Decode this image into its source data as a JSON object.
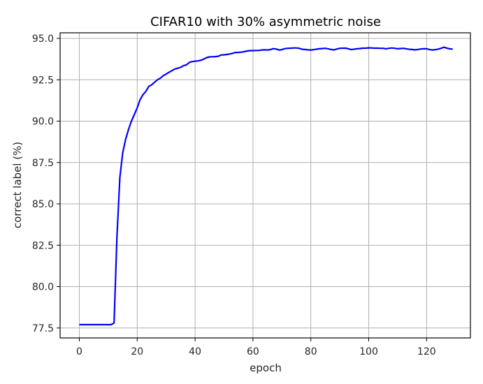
{
  "chart_data": {
    "type": "line",
    "title": "CIFAR10 with 30% asymmetric noise",
    "xlabel": "epoch",
    "ylabel": "correct label (%)",
    "xlim": [
      -6.5,
      135
    ],
    "ylim": [
      76.8,
      95.35
    ],
    "xticks": [
      0,
      20,
      40,
      60,
      80,
      100,
      120
    ],
    "yticks": [
      77.5,
      80.0,
      82.5,
      85.0,
      87.5,
      90.0,
      92.5,
      95.0
    ],
    "ytick_labels": [
      "77.5",
      "80.0",
      "82.5",
      "85.0",
      "87.5",
      "90.0",
      "92.5",
      "95.0"
    ],
    "xtick_labels": [
      "0",
      "20",
      "40",
      "60",
      "80",
      "100",
      "120"
    ],
    "grid": true,
    "legend": null,
    "series": [
      {
        "name": "correct label",
        "color": "#0000ff",
        "x": [
          0,
          1,
          2,
          3,
          4,
          5,
          6,
          7,
          8,
          9,
          10,
          11,
          12,
          13,
          14,
          15,
          16,
          17,
          18,
          19,
          20,
          21,
          22,
          23,
          24,
          25,
          26,
          27,
          28,
          29,
          30,
          31,
          32,
          33,
          34,
          35,
          36,
          37,
          38,
          39,
          40,
          41,
          42,
          43,
          44,
          45,
          46,
          47,
          48,
          49,
          50,
          51,
          52,
          53,
          54,
          55,
          56,
          57,
          58,
          59,
          60,
          61,
          62,
          63,
          64,
          65,
          66,
          67,
          68,
          69,
          70,
          71,
          72,
          73,
          74,
          75,
          76,
          77,
          78,
          79,
          80,
          81,
          82,
          83,
          84,
          85,
          86,
          87,
          88,
          89,
          90,
          91,
          92,
          93,
          94,
          95,
          96,
          97,
          98,
          99,
          100,
          101,
          102,
          103,
          104,
          105,
          106,
          107,
          108,
          109,
          110,
          111,
          112,
          113,
          114,
          115,
          116,
          117,
          118,
          119,
          120,
          121,
          122,
          123,
          124,
          125,
          126,
          127,
          128,
          129
        ],
        "values": [
          77.7,
          77.7,
          77.7,
          77.7,
          77.7,
          77.7,
          77.7,
          77.7,
          77.7,
          77.7,
          77.7,
          77.7,
          77.8,
          83.0,
          86.6,
          88.1,
          88.9,
          89.5,
          90.0,
          90.4,
          90.8,
          91.3,
          91.6,
          91.8,
          92.1,
          92.2,
          92.35,
          92.5,
          92.6,
          92.75,
          92.85,
          92.95,
          93.05,
          93.15,
          93.2,
          93.25,
          93.35,
          93.4,
          93.55,
          93.6,
          93.62,
          93.64,
          93.68,
          93.75,
          93.84,
          93.88,
          93.89,
          93.9,
          93.92,
          94.0,
          94.01,
          94.03,
          94.06,
          94.1,
          94.15,
          94.15,
          94.17,
          94.2,
          94.24,
          94.26,
          94.26,
          94.27,
          94.27,
          94.3,
          94.31,
          94.3,
          94.32,
          94.38,
          94.36,
          94.3,
          94.32,
          94.38,
          94.4,
          94.41,
          94.42,
          94.42,
          94.4,
          94.34,
          94.33,
          94.31,
          94.3,
          94.32,
          94.35,
          94.37,
          94.39,
          94.4,
          94.37,
          94.33,
          94.31,
          94.36,
          94.4,
          94.41,
          94.41,
          94.37,
          94.32,
          94.35,
          94.37,
          94.39,
          94.41,
          94.41,
          94.43,
          94.42,
          94.41,
          94.41,
          94.4,
          94.4,
          94.37,
          94.4,
          94.42,
          94.4,
          94.37,
          94.39,
          94.4,
          94.37,
          94.34,
          94.33,
          94.31,
          94.33,
          94.36,
          94.37,
          94.37,
          94.33,
          94.3,
          94.32,
          94.35,
          94.4,
          94.47,
          94.41,
          94.37,
          94.35
        ]
      }
    ]
  }
}
